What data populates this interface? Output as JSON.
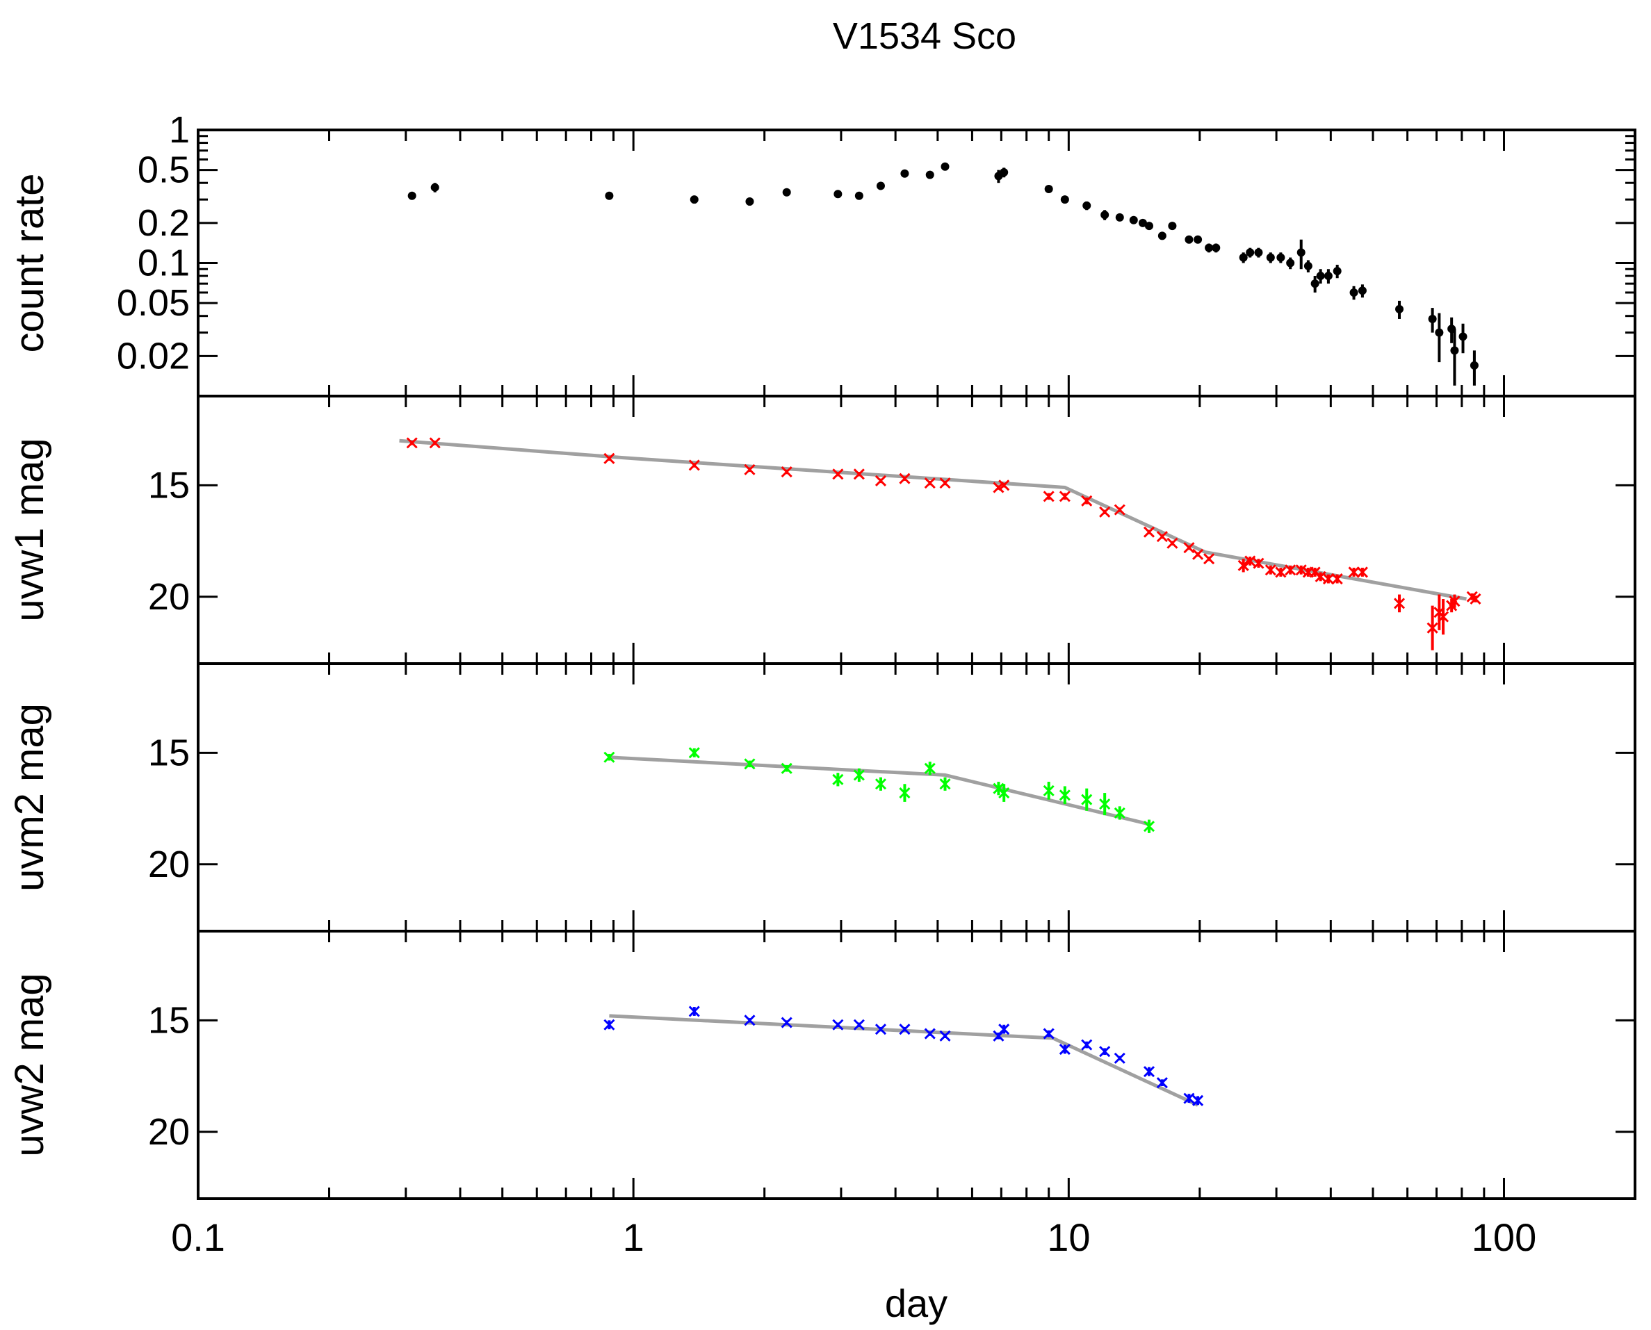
{
  "chart_data": {
    "type": "scatter",
    "title": "V1534 Sco",
    "xlabel": "day",
    "xscale": "log",
    "xlim": [
      0.1,
      200
    ],
    "x_ticks": [
      "0.1",
      "1",
      "10",
      "100"
    ],
    "panels": [
      {
        "id": "count",
        "ylabel": "count rate",
        "yscale": "log",
        "ylim": [
          0.01,
          1
        ],
        "y_ticks": [
          "1",
          "0.5",
          "0.2",
          "0.1",
          "0.05",
          "0.02"
        ],
        "color": "#000000",
        "marker": "dot",
        "points": [
          [
            0.31,
            0.32,
            0.02
          ],
          [
            0.35,
            0.37,
            0.03
          ],
          [
            0.88,
            0.32,
            0.02
          ],
          [
            1.38,
            0.3,
            0.02
          ],
          [
            1.85,
            0.29,
            0.02
          ],
          [
            2.25,
            0.34,
            0.02
          ],
          [
            2.95,
            0.33,
            0.02
          ],
          [
            3.3,
            0.32,
            0.02
          ],
          [
            3.7,
            0.38,
            0.02
          ],
          [
            4.2,
            0.47,
            0.03
          ],
          [
            4.8,
            0.46,
            0.03
          ],
          [
            5.2,
            0.53,
            0.03
          ],
          [
            6.9,
            0.45,
            0.05
          ],
          [
            7.1,
            0.48,
            0.04
          ],
          [
            9.0,
            0.36,
            0.02
          ],
          [
            9.8,
            0.3,
            0.02
          ],
          [
            11.0,
            0.27,
            0.02
          ],
          [
            12.1,
            0.23,
            0.02
          ],
          [
            13.1,
            0.22,
            0.01
          ],
          [
            14.1,
            0.21,
            0.01
          ],
          [
            14.8,
            0.2,
            0.01
          ],
          [
            15.3,
            0.19,
            0.01
          ],
          [
            16.4,
            0.16,
            0.01
          ],
          [
            17.3,
            0.19,
            0.01
          ],
          [
            18.9,
            0.15,
            0.01
          ],
          [
            19.8,
            0.15,
            0.01
          ],
          [
            21.0,
            0.13,
            0.01
          ],
          [
            21.8,
            0.13,
            0.01
          ],
          [
            25.2,
            0.11,
            0.01
          ],
          [
            26.1,
            0.12,
            0.01
          ],
          [
            27.3,
            0.12,
            0.01
          ],
          [
            29.1,
            0.11,
            0.01
          ],
          [
            30.7,
            0.11,
            0.01
          ],
          [
            32.3,
            0.1,
            0.01
          ],
          [
            34.2,
            0.12,
            0.03
          ],
          [
            35.5,
            0.095,
            0.01
          ],
          [
            36.8,
            0.07,
            0.01
          ],
          [
            37.9,
            0.08,
            0.01
          ],
          [
            39.5,
            0.08,
            0.01
          ],
          [
            41.4,
            0.087,
            0.01
          ],
          [
            45.2,
            0.06,
            0.007
          ],
          [
            47.3,
            0.062,
            0.007
          ],
          [
            57.5,
            0.045,
            0.007
          ],
          [
            68.5,
            0.038,
            0.008
          ],
          [
            71.0,
            0.03,
            0.012
          ],
          [
            75.8,
            0.032,
            0.007
          ],
          [
            77.0,
            0.022,
            0.01
          ],
          [
            80.5,
            0.028,
            0.007
          ],
          [
            85.5,
            0.017,
            0.005
          ]
        ]
      },
      {
        "id": "uvw1",
        "ylabel": "uvw1 mag",
        "yscale": "linear",
        "ylim": [
          23,
          11
        ],
        "y_ticks": [
          "15",
          "20"
        ],
        "color": "#ff0000",
        "marker": "x",
        "points": [
          [
            0.31,
            13.1,
            0.1
          ],
          [
            0.35,
            13.1,
            0.1
          ],
          [
            0.88,
            13.8,
            0.1
          ],
          [
            1.38,
            14.1,
            0.1
          ],
          [
            1.85,
            14.3,
            0.1
          ],
          [
            2.25,
            14.4,
            0.1
          ],
          [
            2.95,
            14.5,
            0.1
          ],
          [
            3.3,
            14.5,
            0.1
          ],
          [
            3.7,
            14.8,
            0.1
          ],
          [
            4.2,
            14.7,
            0.1
          ],
          [
            4.8,
            14.9,
            0.1
          ],
          [
            5.2,
            14.9,
            0.1
          ],
          [
            6.9,
            15.1,
            0.1
          ],
          [
            7.1,
            15.0,
            0.1
          ],
          [
            9.0,
            15.5,
            0.15
          ],
          [
            9.8,
            15.5,
            0.15
          ],
          [
            11.0,
            15.7,
            0.15
          ],
          [
            12.1,
            16.2,
            0.1
          ],
          [
            13.1,
            16.1,
            0.1
          ],
          [
            15.3,
            17.1,
            0.1
          ],
          [
            16.4,
            17.3,
            0.1
          ],
          [
            17.3,
            17.6,
            0.1
          ],
          [
            18.9,
            17.8,
            0.1
          ],
          [
            19.8,
            18.1,
            0.1
          ],
          [
            21.0,
            18.3,
            0.1
          ],
          [
            25.2,
            18.6,
            0.3
          ],
          [
            26.1,
            18.4,
            0.2
          ],
          [
            27.3,
            18.5,
            0.2
          ],
          [
            29.1,
            18.8,
            0.2
          ],
          [
            30.7,
            18.9,
            0.2
          ],
          [
            32.3,
            18.8,
            0.2
          ],
          [
            34.2,
            18.8,
            0.2
          ],
          [
            35.5,
            18.9,
            0.2
          ],
          [
            36.8,
            18.9,
            0.2
          ],
          [
            37.9,
            19.1,
            0.2
          ],
          [
            39.5,
            19.2,
            0.2
          ],
          [
            41.4,
            19.2,
            0.2
          ],
          [
            45.2,
            18.9,
            0.2
          ],
          [
            47.3,
            18.9,
            0.2
          ],
          [
            57.5,
            20.3,
            0.4
          ],
          [
            68.5,
            21.4,
            1.0
          ],
          [
            71.0,
            20.7,
            0.8
          ],
          [
            72.5,
            20.9,
            0.8
          ],
          [
            75.8,
            20.4,
            0.3
          ],
          [
            77.0,
            20.2,
            0.3
          ],
          [
            84.5,
            20.0,
            0.15
          ],
          [
            86.0,
            20.1,
            0.15
          ]
        ],
        "fit": [
          [
            0.29,
            13.0
          ],
          [
            1.0,
            13.8
          ],
          [
            9.8,
            15.1
          ],
          [
            20.6,
            18.0
          ],
          [
            82.0,
            20.1
          ]
        ]
      },
      {
        "id": "uvm2",
        "ylabel": "uvm2 mag",
        "yscale": "linear",
        "ylim": [
          23,
          11
        ],
        "y_ticks": [
          "15",
          "20"
        ],
        "color": "#00ff00",
        "marker": "x",
        "points": [
          [
            0.88,
            15.2,
            0.15
          ],
          [
            1.38,
            15.0,
            0.2
          ],
          [
            1.85,
            15.5,
            0.15
          ],
          [
            2.25,
            15.7,
            0.15
          ],
          [
            2.95,
            16.2,
            0.3
          ],
          [
            3.3,
            16.0,
            0.3
          ],
          [
            3.7,
            16.4,
            0.3
          ],
          [
            4.2,
            16.8,
            0.4
          ],
          [
            4.8,
            15.7,
            0.3
          ],
          [
            5.2,
            16.4,
            0.3
          ],
          [
            6.9,
            16.6,
            0.3
          ],
          [
            7.1,
            16.8,
            0.4
          ],
          [
            9.0,
            16.7,
            0.4
          ],
          [
            9.8,
            16.9,
            0.4
          ],
          [
            11.0,
            17.1,
            0.5
          ],
          [
            12.1,
            17.3,
            0.5
          ],
          [
            13.1,
            17.7,
            0.3
          ],
          [
            15.3,
            18.3,
            0.3
          ]
        ],
        "fit": [
          [
            0.88,
            15.2
          ],
          [
            5.2,
            16.0
          ],
          [
            15.3,
            18.2
          ]
        ]
      },
      {
        "id": "uvw2",
        "ylabel": "uvw2 mag",
        "yscale": "linear",
        "ylim": [
          23,
          11
        ],
        "y_ticks": [
          "15",
          "20"
        ],
        "color": "#0000ff",
        "marker": "x",
        "points": [
          [
            0.88,
            15.2,
            0.2
          ],
          [
            1.38,
            14.6,
            0.2
          ],
          [
            1.85,
            15.0,
            0.1
          ],
          [
            2.25,
            15.1,
            0.1
          ],
          [
            2.95,
            15.2,
            0.1
          ],
          [
            3.3,
            15.2,
            0.1
          ],
          [
            3.7,
            15.4,
            0.1
          ],
          [
            4.2,
            15.4,
            0.1
          ],
          [
            4.8,
            15.6,
            0.1
          ],
          [
            5.2,
            15.7,
            0.1
          ],
          [
            6.9,
            15.7,
            0.15
          ],
          [
            7.1,
            15.4,
            0.2
          ],
          [
            9.0,
            15.6,
            0.15
          ],
          [
            9.8,
            16.3,
            0.2
          ],
          [
            11.0,
            16.1,
            0.15
          ],
          [
            12.1,
            16.4,
            0.15
          ],
          [
            13.1,
            16.7,
            0.1
          ],
          [
            15.3,
            17.3,
            0.2
          ],
          [
            16.4,
            17.8,
            0.15
          ],
          [
            18.9,
            18.5,
            0.2
          ],
          [
            19.8,
            18.6,
            0.2
          ]
        ],
        "fit": [
          [
            0.88,
            14.8
          ],
          [
            9.2,
            15.8
          ],
          [
            19.8,
            18.8
          ]
        ]
      }
    ]
  }
}
